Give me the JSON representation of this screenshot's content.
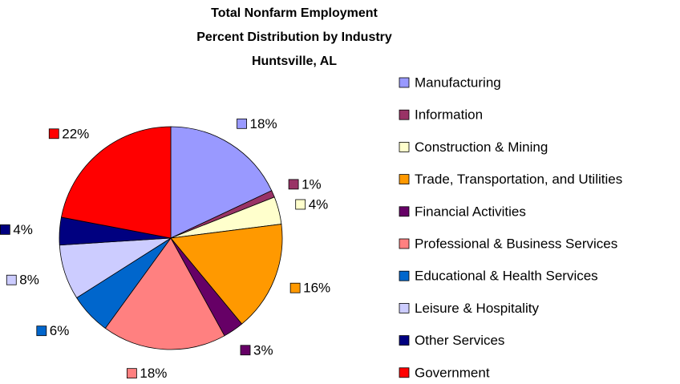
{
  "chart_data": {
    "type": "pie",
    "title": [
      "Total Nonfarm Employment",
      "Percent Distribution by Industry",
      "Huntsville, AL"
    ],
    "categories": [
      "Manufacturing",
      "Information",
      "Construction & Mining",
      "Trade, Transportation, and Utilities",
      "Financial Activities",
      "Professional & Business Services",
      "Educational & Health Services",
      "Leisure & Hospitality",
      "Other Services",
      "Government"
    ],
    "values": [
      18,
      1,
      4,
      16,
      3,
      18,
      6,
      8,
      4,
      22
    ],
    "value_labels": [
      "18%",
      "1%",
      "4%",
      "16%",
      "3%",
      "18%",
      "6%",
      "8%",
      "4%",
      "22%"
    ],
    "colors": [
      "#9999ff",
      "#993366",
      "#ffffcc",
      "#ff9900",
      "#660066",
      "#ff8080",
      "#0066cc",
      "#ccccff",
      "#000080",
      "#ff0000"
    ],
    "legend": "right"
  }
}
